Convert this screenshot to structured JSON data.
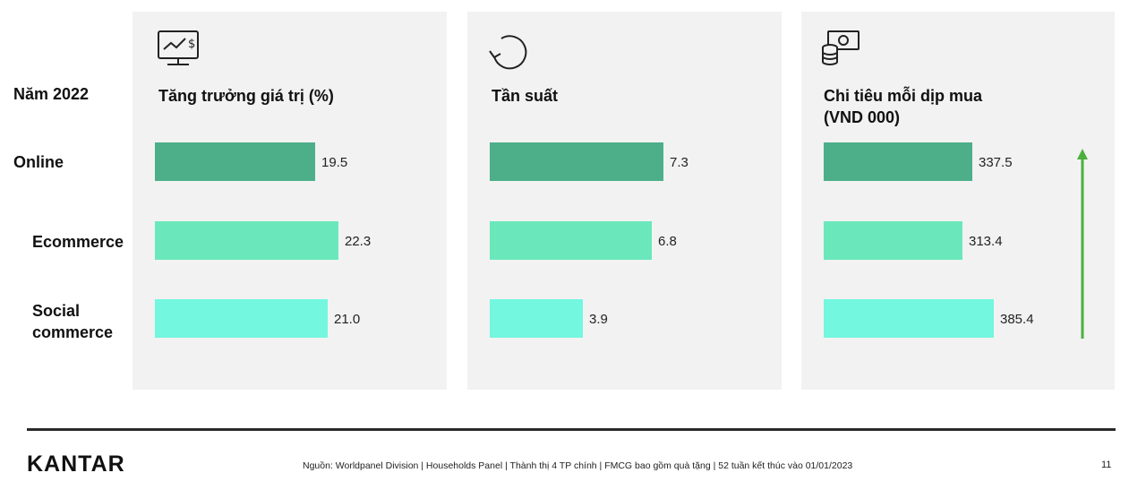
{
  "chart_data": {
    "type": "bar",
    "orientation": "horizontal",
    "row_header": "Năm 2022",
    "categories": [
      "Online",
      "Ecommerce",
      "Social\ncommerce"
    ],
    "category_lines": [
      [
        "Online"
      ],
      [
        "Ecommerce"
      ],
      [
        "Social",
        "commerce"
      ]
    ],
    "colors": [
      "#4caf8a",
      "#6ae8bc",
      "#73f7df"
    ],
    "panels": [
      {
        "title": [
          "Tăng trưởng giá trị (%)"
        ],
        "icon": "monitor-dollar-chart-icon",
        "values": [
          19.5,
          22.3,
          21.0
        ],
        "labels": [
          "19.5",
          "22.3",
          "21.0"
        ]
      },
      {
        "title": [
          "Tần suất"
        ],
        "icon": "circular-arrow-icon",
        "values": [
          7.3,
          6.8,
          3.9
        ],
        "labels": [
          "7.3",
          "6.8",
          "3.9"
        ]
      },
      {
        "title": [
          "Chi tiêu mỗi dịp mua",
          "(VND 000)"
        ],
        "icon": "money-coins-icon",
        "values": [
          337.5,
          313.4,
          385.4
        ],
        "labels": [
          "337.5",
          "313.4",
          "385.4"
        ],
        "trend_arrow": "up",
        "trend_color": "#4caf3e"
      }
    ]
  },
  "footer": {
    "logo": "KANTAR",
    "source": "Nguồn: Worldpanel Division | Households Panel | Thành thị 4 TP chính | FMCG bao gồm quà tặng | 52 tuần kết thúc vào 01/01/2023",
    "page_number": "11"
  }
}
